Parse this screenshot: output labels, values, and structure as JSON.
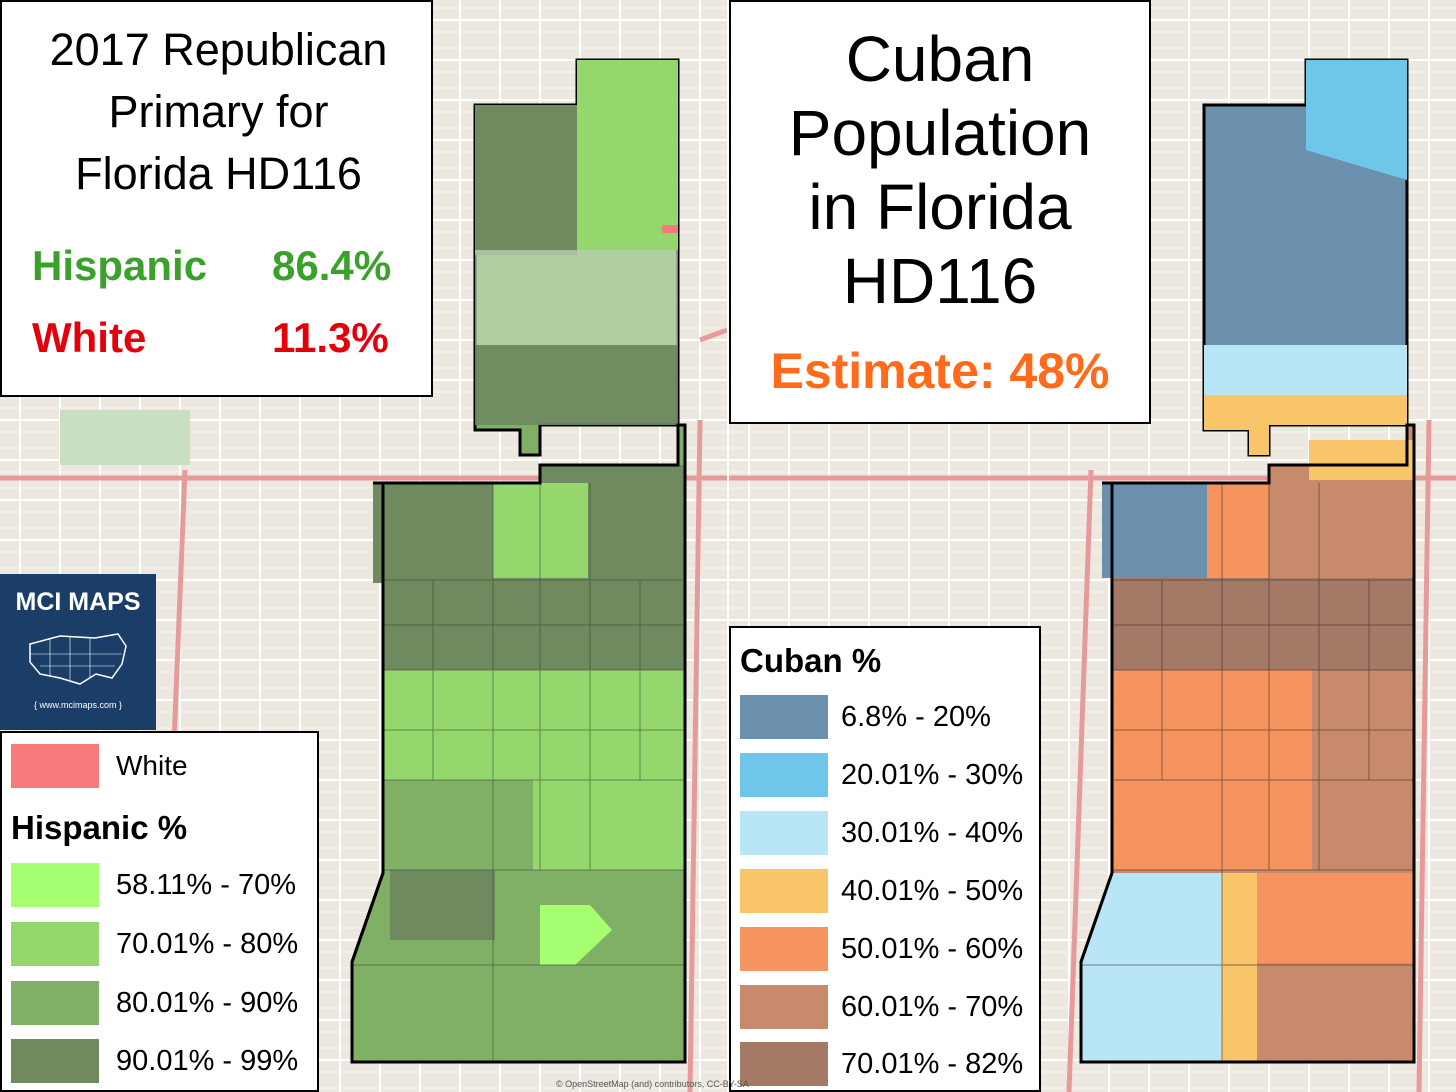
{
  "left_panel": {
    "title_lines": [
      "2017 Republican",
      "Primary for",
      "Florida HD116"
    ],
    "stats": [
      {
        "label": "Hispanic",
        "value": "86.4%",
        "color": "#3aa12a"
      },
      {
        "label": "White",
        "value": "11.3%",
        "color": "#e3000b"
      }
    ],
    "legend": {
      "white_label": "White",
      "white_color": "#f77b7b",
      "heading": "Hispanic %",
      "items": [
        {
          "label": "58.11% - 70%",
          "color": "#a6ff6e"
        },
        {
          "label": "70.01% - 80%",
          "color": "#94d86d"
        },
        {
          "label": "80.01% - 90%",
          "color": "#7fb066"
        },
        {
          "label": "90.01% - 99%",
          "color": "#6e8a5e"
        }
      ]
    }
  },
  "right_panel": {
    "title_lines": [
      "Cuban",
      "Population",
      "in Florida",
      "HD116"
    ],
    "estimate": "Estimate:  48%",
    "legend": {
      "heading": "Cuban  %",
      "items": [
        {
          "label": "6.8% - 20%",
          "color": "#6b90ad"
        },
        {
          "label": "20.01% - 30%",
          "color": "#6ec6e8"
        },
        {
          "label": "30.01% - 40%",
          "color": "#b9e6f6"
        },
        {
          "label": "40.01% - 50%",
          "color": "#f9c56b"
        },
        {
          "label": "50.01% - 60%",
          "color": "#f5945e"
        },
        {
          "label": "60.01% - 70%",
          "color": "#c88a6c"
        },
        {
          "label": "70.01% - 82%",
          "color": "#a47a67"
        }
      ]
    }
  },
  "logo": {
    "name": "MCI MAPS",
    "url": "{ www.mcimaps.com }"
  },
  "credit": "© OpenStreetMap (and) contributors, CC-BY-SA"
}
